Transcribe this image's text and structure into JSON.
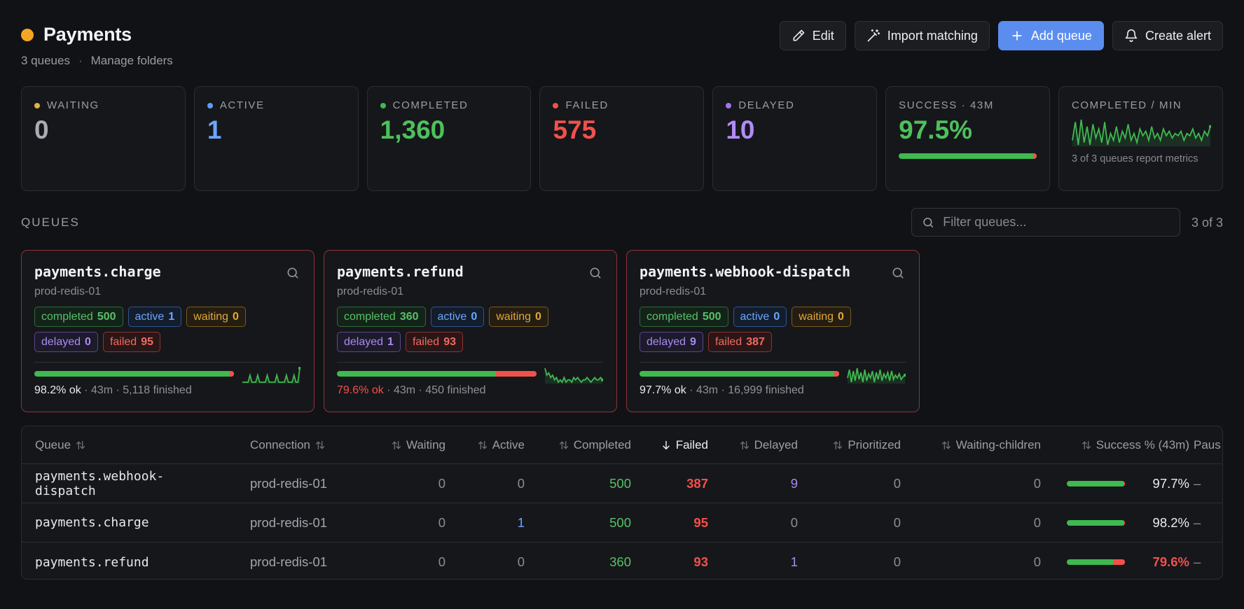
{
  "header": {
    "title": "Payments",
    "status_color": "#f5a524",
    "queue_count": "3 queues",
    "separator": "·",
    "manage_folders": "Manage folders",
    "actions": {
      "edit": "Edit",
      "import_matching": "Import matching",
      "add_queue": "Add queue",
      "create_alert": "Create alert"
    }
  },
  "stats": [
    {
      "label": "WAITING",
      "value": "0",
      "color": "#e2b340",
      "value_color": "#a9acb3"
    },
    {
      "label": "ACTIVE",
      "value": "1",
      "color": "#5b9cff",
      "value_color": "#6aa6ff"
    },
    {
      "label": "COMPLETED",
      "value": "1,360",
      "color": "#3fb950",
      "value_color": "#4cc15c"
    },
    {
      "label": "FAILED",
      "value": "575",
      "color": "#f2514b",
      "value_color": "#f2514b"
    },
    {
      "label": "DELAYED",
      "value": "10",
      "color": "#a371f7",
      "value_color": "#b08cf5"
    }
  ],
  "success": {
    "label": "SUCCESS · 43M",
    "value": "97.5%",
    "success_pct": 97.5
  },
  "throughput": {
    "label": "COMPLETED / MIN",
    "note": "3 of 3 queues report metrics",
    "series": [
      6,
      14,
      4,
      15,
      5,
      12,
      4,
      13,
      7,
      11,
      5,
      14,
      4,
      9,
      6,
      12,
      5,
      10,
      7,
      13,
      6,
      9,
      5,
      11,
      8,
      10,
      6,
      12,
      7,
      9,
      6,
      11,
      8,
      10,
      7,
      9,
      8,
      10,
      6,
      9,
      8,
      11,
      7,
      9,
      6,
      10,
      8,
      12
    ]
  },
  "queues_section": {
    "label": "QUEUES",
    "filter_placeholder": "Filter queues...",
    "count": "3 of 3"
  },
  "queue_cards": [
    {
      "name": "payments.charge",
      "connection": "prod-redis-01",
      "completed": "500",
      "active": "1",
      "waiting": "0",
      "delayed": "0",
      "failed": "95",
      "ok": "98.2% ok",
      "ok_bad": false,
      "window": "43m",
      "finished": "5,118 finished",
      "success_pct": 98.2,
      "spark": [
        5,
        5,
        5,
        5,
        6,
        5,
        5,
        5,
        6,
        5,
        5,
        5,
        5,
        6,
        5,
        5,
        5,
        5,
        6,
        5,
        5,
        5,
        5,
        6,
        5,
        5,
        5,
        6,
        5,
        5,
        7
      ]
    },
    {
      "name": "payments.refund",
      "connection": "prod-redis-01",
      "completed": "360",
      "active": "0",
      "waiting": "0",
      "delayed": "1",
      "failed": "93",
      "ok": "79.6% ok",
      "ok_bad": true,
      "window": "43m",
      "finished": "450 finished",
      "success_pct": 79.6,
      "spark": [
        9,
        6,
        7,
        5,
        6,
        4,
        5,
        3,
        4,
        3,
        5,
        3,
        4,
        4,
        3,
        5,
        4,
        5,
        4,
        3,
        4,
        4,
        5,
        4,
        3,
        4,
        5,
        4,
        4,
        5,
        4
      ]
    },
    {
      "name": "payments.webhook-dispatch",
      "connection": "prod-redis-01",
      "completed": "500",
      "active": "0",
      "waiting": "0",
      "delayed": "9",
      "failed": "387",
      "ok": "97.7% ok",
      "ok_bad": false,
      "window": "43m",
      "finished": "16,999 finished",
      "success_pct": 97.7,
      "spark": [
        6,
        12,
        3,
        11,
        4,
        13,
        5,
        10,
        3,
        12,
        4,
        9,
        6,
        11,
        3,
        10,
        5,
        12,
        4,
        9,
        6,
        10,
        4,
        11,
        5,
        8,
        6,
        9,
        5,
        7,
        8
      ]
    }
  ],
  "table": {
    "columns": {
      "queue": "Queue",
      "connection": "Connection",
      "waiting": "Waiting",
      "active": "Active",
      "completed": "Completed",
      "failed": "Failed",
      "delayed": "Delayed",
      "prioritized": "Prioritized",
      "waiting_children": "Waiting-children",
      "success": "Success % (43m)",
      "paused": "Paus"
    },
    "rows": [
      {
        "queue": "payments.webhook-dispatch",
        "connection": "prod-redis-01",
        "waiting": "0",
        "active": "0",
        "completed": "500",
        "failed": "387",
        "delayed": "9",
        "prioritized": "0",
        "waiting_children": "0",
        "success": "97.7%",
        "success_pct": 97.7,
        "paused": "–"
      },
      {
        "queue": "payments.charge",
        "connection": "prod-redis-01",
        "waiting": "0",
        "active": "1",
        "completed": "500",
        "failed": "95",
        "delayed": "0",
        "prioritized": "0",
        "waiting_children": "0",
        "success": "98.2%",
        "success_pct": 98.2,
        "paused": "–"
      },
      {
        "queue": "payments.refund",
        "connection": "prod-redis-01",
        "waiting": "0",
        "active": "0",
        "completed": "360",
        "failed": "93",
        "delayed": "1",
        "prioritized": "0",
        "waiting_children": "0",
        "success": "79.6%",
        "success_pct": 79.6,
        "paused": "–"
      }
    ]
  }
}
